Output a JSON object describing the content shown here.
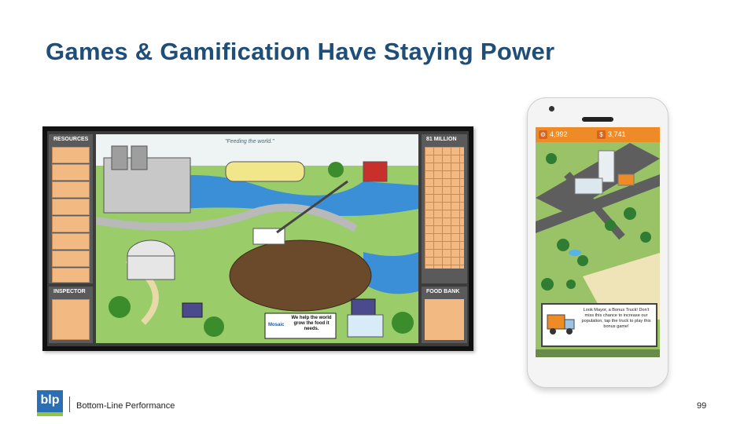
{
  "slide": {
    "title": "Games & Gamification Have Staying Power",
    "page_number": "99"
  },
  "board_game": {
    "resources_label": "RESOURCES",
    "inspector_label": "INSPECTOR",
    "million_label": "81 MILLION",
    "food_bank_label": "FOOD BANK",
    "tagline": "\"Feeding the world.\"",
    "sign_text": "We help the world grow the food it needs.",
    "sign_brand": "Mosaic"
  },
  "mobile_game": {
    "population": "4,992",
    "money": "3,741",
    "money_icon": "$",
    "dialog": "Look Mayor, a Bonus Truck! Don't miss this chance to increase our population, tap the truck to play this bonus game!"
  },
  "footer": {
    "company": "Bottom-Line Performance",
    "logo": "blp"
  },
  "colors": {
    "title": "#1f4e79",
    "orange": "#ef8b26",
    "logo_blue": "#2a6fb4",
    "logo_green": "#8dc63f"
  }
}
